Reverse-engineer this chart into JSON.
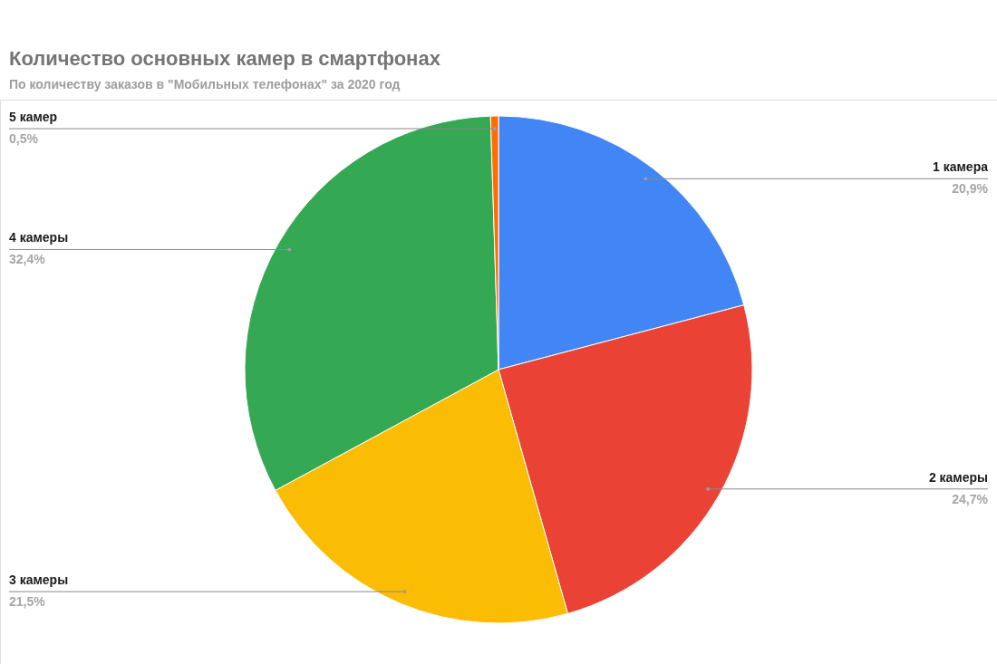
{
  "chart_data": {
    "type": "pie",
    "title": "Количество основных камер в смартфонах",
    "subtitle": "По количеству заказов в \"Мобильных телефонах\" за 2020 год",
    "categories": [
      "1 камера",
      "2 камеры",
      "3 камеры",
      "4 камеры",
      "5 камер"
    ],
    "values": [
      20.9,
      24.7,
      21.5,
      32.4,
      0.5
    ],
    "colors": [
      "#4285f4",
      "#ea4335",
      "#fbbc04",
      "#34a853",
      "#ff6d01"
    ],
    "value_labels": [
      "20,9%",
      "24,7%",
      "21,5%",
      "32,4%",
      "0,5%"
    ]
  }
}
